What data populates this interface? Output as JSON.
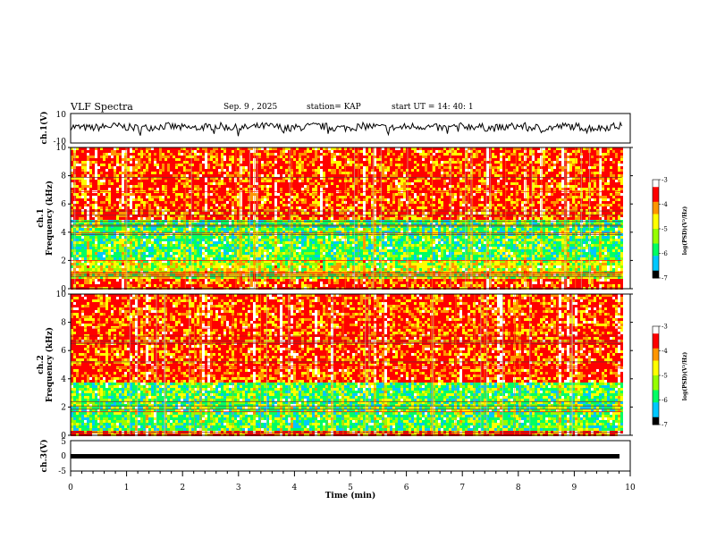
{
  "header": {
    "title": "VLF Spectra",
    "date": "Sep. 9 , 2025",
    "station": "station= KAP",
    "start": "start UT = 14: 40: 1"
  },
  "chart_data": [
    {
      "type": "line",
      "name": "ch1-waveform",
      "ylabel": "ch.1(V)",
      "ylim": [
        -10,
        10
      ],
      "ytick_labels": [
        "-10",
        "10"
      ],
      "xlim": [
        0,
        9.85
      ],
      "note": "noisy waveform oscillating between about -4 and +4 V"
    },
    {
      "type": "heatmap",
      "name": "ch1-spectrogram",
      "ylabel": "ch.1 Frequency (kHz)",
      "ylim": [
        0,
        10
      ],
      "ytick_labels": [
        "0",
        "2",
        "4",
        "6",
        "8",
        "10"
      ],
      "xlim": [
        0,
        9.85
      ],
      "colorbar": {
        "label": "log(PSD)(V²/Hz)",
        "range": [
          -7,
          -3
        ],
        "tick_labels": [
          "-3",
          "-4",
          "-5",
          "-6",
          "-7"
        ]
      },
      "bands": [
        {
          "from": 0,
          "to": 0.7,
          "level": "high"
        },
        {
          "from": 0.7,
          "to": 2.2,
          "level": "mid"
        },
        {
          "from": 2.2,
          "to": 5.0,
          "level": "low"
        },
        {
          "from": 5.0,
          "to": 10,
          "level": "high"
        }
      ]
    },
    {
      "type": "heatmap",
      "name": "ch2-spectrogram",
      "ylabel": "ch.2 Frequency (kHz)",
      "ylim": [
        0,
        10
      ],
      "ytick_labels": [
        "0",
        "2",
        "4",
        "6",
        "8",
        "10"
      ],
      "xlim": [
        0,
        9.85
      ],
      "colorbar": {
        "label": "log(PSD)(V²/Hz)",
        "range": [
          -7,
          -3
        ],
        "tick_labels": [
          "-3",
          "-4",
          "-5",
          "-6",
          "-7"
        ]
      },
      "bands": [
        {
          "from": 0,
          "to": 0.4,
          "level": "high"
        },
        {
          "from": 0.4,
          "to": 3.8,
          "level": "low"
        },
        {
          "from": 3.8,
          "to": 10,
          "level": "high"
        }
      ]
    },
    {
      "type": "line",
      "name": "ch3-waveform",
      "ylabel": "ch.3(V)",
      "ylim": [
        -5,
        5
      ],
      "ytick_labels": [
        "-5",
        "0",
        "5"
      ],
      "xlim": [
        0,
        9.85
      ],
      "values_summary": "flat thick trace near -1 V"
    }
  ],
  "xaxis": {
    "label": "Time (min)",
    "range": [
      0,
      10
    ],
    "tick_labels": [
      "0",
      "1",
      "2",
      "3",
      "4",
      "5",
      "6",
      "7",
      "8",
      "9",
      "10"
    ]
  },
  "colors": {
    "cmap": [
      "#000000",
      "#0000ff",
      "#00c8ff",
      "#00ff64",
      "#96ff00",
      "#ffff00",
      "#ff9600",
      "#ff0000",
      "#ffffff"
    ]
  }
}
